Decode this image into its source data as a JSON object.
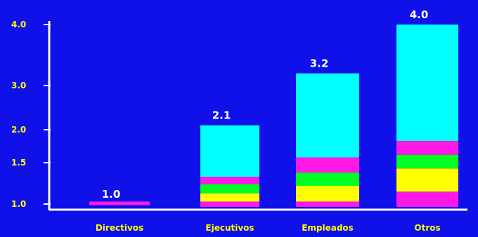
{
  "chart_data": {
    "type": "bar",
    "stacked": true,
    "title": "",
    "xlabel": "",
    "ylabel": "",
    "ylim": [
      0.9,
      4.0
    ],
    "y_ticks": [
      {
        "value": 1.0,
        "label": "1.0",
        "pos": 1.0
      },
      {
        "value": 1.5,
        "label": "1.5",
        "pos": 1.5
      },
      {
        "value": 2.0,
        "label": "2.0",
        "pos": 2.0
      },
      {
        "value": 3.0,
        "label": "3.0",
        "pos": 3.0
      },
      {
        "value": 4.0,
        "label": "4.0",
        "pos": 4.0
      }
    ],
    "categories": [
      "Directivos",
      "Ejecutivos",
      "Empleados",
      "Otros"
    ],
    "totals": [
      1.0,
      2.1,
      3.2,
      4.0
    ],
    "total_labels": [
      "1.0",
      "2.1",
      "3.2",
      "4.0"
    ],
    "segment_colors": [
      "#ff19e6",
      "#ffff00",
      "#00ff22",
      "#ff19e6",
      "#00ffff"
    ],
    "bars": [
      {
        "category": "Directivos",
        "segments": [
          {
            "start": 0.98,
            "end": 1.03,
            "color": "#ff19e6"
          }
        ]
      },
      {
        "category": "Ejecutivos",
        "segments": [
          {
            "start": 0.95,
            "end": 1.03,
            "color": "#ff19e6"
          },
          {
            "start": 1.03,
            "end": 1.13,
            "color": "#ffff00"
          },
          {
            "start": 1.13,
            "end": 1.24,
            "color": "#00ff22"
          },
          {
            "start": 1.24,
            "end": 1.33,
            "color": "#ff19e6"
          },
          {
            "start": 1.33,
            "end": 2.1,
            "color": "#00ffff"
          }
        ]
      },
      {
        "category": "Empleados",
        "segments": [
          {
            "start": 0.95,
            "end": 1.03,
            "color": "#ff19e6"
          },
          {
            "start": 1.03,
            "end": 1.22,
            "color": "#ffff00"
          },
          {
            "start": 1.22,
            "end": 1.38,
            "color": "#00ff22"
          },
          {
            "start": 1.38,
            "end": 1.58,
            "color": "#ff19e6"
          },
          {
            "start": 1.58,
            "end": 3.2,
            "color": "#00ffff"
          }
        ]
      },
      {
        "category": "Otros",
        "segments": [
          {
            "start": 0.95,
            "end": 1.15,
            "color": "#ff19e6"
          },
          {
            "start": 1.15,
            "end": 1.43,
            "color": "#ffff00"
          },
          {
            "start": 1.43,
            "end": 1.62,
            "color": "#00ff22"
          },
          {
            "start": 1.62,
            "end": 1.83,
            "color": "#ff19e6"
          },
          {
            "start": 1.83,
            "end": 4.0,
            "color": "#00ffff"
          }
        ]
      }
    ],
    "grid": false,
    "legend": "none"
  },
  "colors": {
    "background": "#1010e8",
    "axis": "#ffffff",
    "tick_labels": "#ffff00",
    "value_labels": "#ffffff"
  }
}
